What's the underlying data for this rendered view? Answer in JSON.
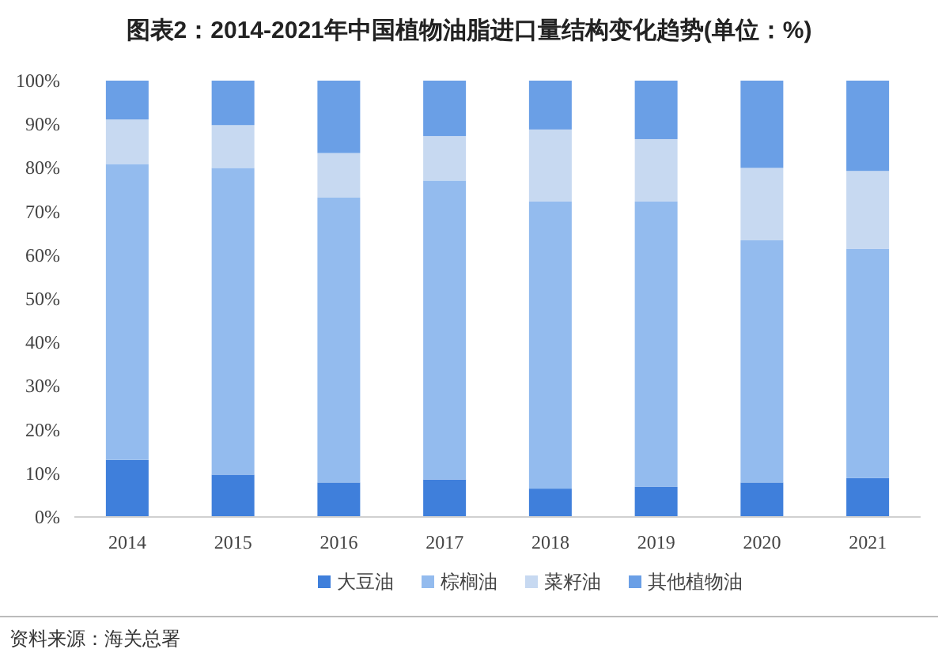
{
  "chart_data": {
    "type": "bar",
    "stacked": true,
    "title": "图表2：2014-2021年中国植物油脂进口量结构变化趋势(单位：%)",
    "categories": [
      "2014",
      "2015",
      "2016",
      "2017",
      "2018",
      "2019",
      "2020",
      "2021"
    ],
    "series": [
      {
        "name": "大豆油",
        "color": "#3f7fdb",
        "values": [
          13.1,
          9.7,
          7.9,
          8.6,
          6.5,
          6.9,
          7.9,
          8.9
        ]
      },
      {
        "name": "棕榈油",
        "color": "#93bbee",
        "values": [
          67.8,
          70.3,
          65.3,
          68.5,
          65.8,
          65.4,
          55.5,
          52.6
        ]
      },
      {
        "name": "菜籽油",
        "color": "#c7d9f1",
        "values": [
          10.2,
          9.8,
          10.2,
          10.2,
          16.5,
          14.3,
          16.6,
          17.8
        ]
      },
      {
        "name": "其他植物油",
        "color": "#6a9fe6",
        "values": [
          8.9,
          10.2,
          16.6,
          12.7,
          11.2,
          13.4,
          20.0,
          20.7
        ]
      }
    ],
    "ylim": [
      0,
      100
    ],
    "yticks": [
      {
        "value": 0,
        "label": "0%"
      },
      {
        "value": 10,
        "label": "10%"
      },
      {
        "value": 20,
        "label": "20%"
      },
      {
        "value": 30,
        "label": "30%"
      },
      {
        "value": 40,
        "label": "40%"
      },
      {
        "value": 50,
        "label": "50%"
      },
      {
        "value": 60,
        "label": "60%"
      },
      {
        "value": 70,
        "label": "70%"
      },
      {
        "value": 80,
        "label": "80%"
      },
      {
        "value": 90,
        "label": "90%"
      },
      {
        "value": 100,
        "label": "100%"
      }
    ],
    "legend": "bottom",
    "annotations": [
      "资料来源：海关总署"
    ]
  }
}
